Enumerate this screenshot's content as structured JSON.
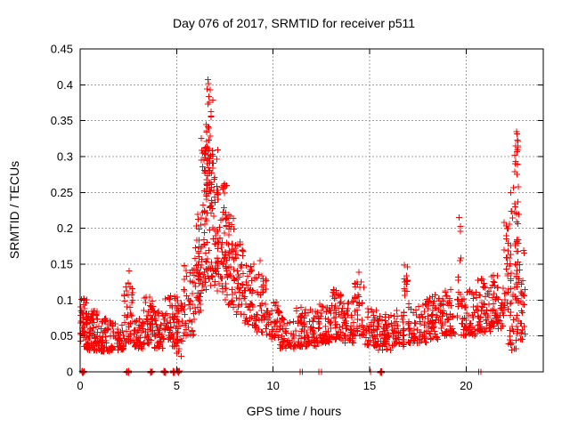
{
  "chart_data": {
    "type": "scatter",
    "title": "Day 076 of 2017, SRMTID for receiver p511",
    "xlabel": "GPS time / hours",
    "ylabel": "SRMTID / TECUs",
    "xlim": [
      0,
      24
    ],
    "ylim": [
      0,
      0.45
    ],
    "xticks": [
      "0",
      "5",
      "10",
      "15",
      "20"
    ],
    "yticks": [
      "0",
      "0.05",
      "0.1",
      "0.15",
      "0.2",
      "0.25",
      "0.3",
      "0.35",
      "0.4",
      "0.45"
    ],
    "grid": "dashed",
    "legend": "none",
    "marker": {
      "glyph": "plus",
      "color": "#ff0000",
      "size": 7
    },
    "frame_color": "#000000",
    "grid_color": "#a0a0a0",
    "background": "#ffffff",
    "seed": 76,
    "scatter_bands": [
      [
        0.0,
        0.35,
        40,
        0.035,
        0.105,
        1.2,
        0
      ],
      [
        0.35,
        1.0,
        85,
        0.03,
        0.085,
        1.4,
        0
      ],
      [
        1.0,
        1.6,
        55,
        0.028,
        0.075,
        1.4,
        0
      ],
      [
        1.6,
        2.25,
        50,
        0.03,
        0.07,
        1.4,
        0
      ],
      [
        2.25,
        2.75,
        45,
        0.04,
        0.125,
        1.5,
        5
      ],
      [
        2.75,
        3.3,
        45,
        0.032,
        0.075,
        1.4,
        0
      ],
      [
        3.3,
        3.85,
        50,
        0.038,
        0.105,
        1.5,
        0
      ],
      [
        3.85,
        4.35,
        45,
        0.033,
        0.085,
        1.4,
        0
      ],
      [
        4.35,
        4.7,
        30,
        0.045,
        0.11,
        1.5,
        4
      ],
      [
        4.7,
        5.05,
        35,
        0.035,
        0.105,
        1.5,
        0
      ],
      [
        5.0,
        5.35,
        25,
        0.02,
        0.1,
        1.2,
        0
      ],
      [
        5.35,
        5.95,
        45,
        0.05,
        0.15,
        1.5,
        6
      ],
      [
        5.95,
        6.3,
        45,
        0.08,
        0.22,
        1.2,
        6
      ],
      [
        6.25,
        6.6,
        50,
        0.11,
        0.34,
        1.1,
        7
      ],
      [
        6.4,
        6.9,
        45,
        0.22,
        0.41,
        1.0,
        7
      ],
      [
        6.5,
        7.15,
        70,
        0.12,
        0.31,
        1.2,
        0
      ],
      [
        7.1,
        7.6,
        60,
        0.11,
        0.26,
        1.3,
        0
      ],
      [
        7.5,
        8.0,
        50,
        0.09,
        0.22,
        1.3,
        6
      ],
      [
        8.0,
        8.5,
        45,
        0.08,
        0.19,
        1.4,
        0
      ],
      [
        8.5,
        9.05,
        45,
        0.065,
        0.15,
        1.4,
        0
      ],
      [
        9.05,
        9.65,
        45,
        0.055,
        0.145,
        1.5,
        0
      ],
      [
        9.65,
        10.35,
        45,
        0.045,
        0.1,
        1.4,
        0
      ],
      [
        10.35,
        11.2,
        50,
        0.032,
        0.075,
        1.3,
        0
      ],
      [
        11.2,
        12.25,
        90,
        0.035,
        0.09,
        1.5,
        0
      ],
      [
        12.25,
        13.0,
        70,
        0.04,
        0.095,
        1.5,
        0
      ],
      [
        13.0,
        13.6,
        50,
        0.045,
        0.115,
        1.5,
        0
      ],
      [
        13.6,
        14.2,
        50,
        0.04,
        0.1,
        1.4,
        0
      ],
      [
        14.2,
        14.75,
        40,
        0.05,
        0.13,
        1.5,
        5
      ],
      [
        14.75,
        15.4,
        50,
        0.035,
        0.09,
        1.4,
        0
      ],
      [
        15.4,
        16.1,
        55,
        0.03,
        0.08,
        1.3,
        0
      ],
      [
        16.1,
        16.8,
        50,
        0.035,
        0.09,
        1.4,
        0
      ],
      [
        16.75,
        17.0,
        16,
        0.1,
        0.15,
        1.0,
        2
      ],
      [
        17.0,
        17.95,
        65,
        0.04,
        0.1,
        1.4,
        0
      ],
      [
        17.95,
        18.75,
        60,
        0.045,
        0.11,
        1.4,
        0
      ],
      [
        18.75,
        19.55,
        55,
        0.05,
        0.115,
        1.4,
        0
      ],
      [
        19.55,
        19.75,
        12,
        0.09,
        0.205,
        1.0,
        2
      ],
      [
        19.75,
        20.5,
        55,
        0.05,
        0.115,
        1.4,
        0
      ],
      [
        20.5,
        21.3,
        65,
        0.055,
        0.13,
        1.5,
        0
      ],
      [
        21.3,
        21.95,
        55,
        0.06,
        0.135,
        1.5,
        0
      ],
      [
        21.95,
        22.35,
        35,
        0.08,
        0.21,
        1.1,
        5
      ],
      [
        22.3,
        22.75,
        40,
        0.1,
        0.28,
        1.2,
        5
      ],
      [
        22.5,
        22.72,
        13,
        0.285,
        0.335,
        1.0,
        2
      ],
      [
        22.6,
        23.05,
        40,
        0.045,
        0.175,
        1.3,
        0
      ],
      [
        22.2,
        22.65,
        18,
        0.03,
        0.08,
        1.2,
        0
      ]
    ],
    "outlier_points": [
      [
        2.54,
        0.141
      ],
      [
        6.62,
        0.407
      ],
      [
        7.48,
        0.262
      ],
      [
        9.32,
        0.155
      ],
      [
        14.45,
        0.139
      ],
      [
        19.63,
        0.215
      ],
      [
        22.62,
        0.335
      ]
    ],
    "zero_clusters_x": [
      0.15,
      2.46,
      3.69,
      4.38,
      4.85,
      5.08,
      15.6
    ],
    "zero_marks_x": [
      11.4,
      11.52,
      12.38,
      12.5,
      15.05,
      20.65,
      20.78
    ]
  }
}
